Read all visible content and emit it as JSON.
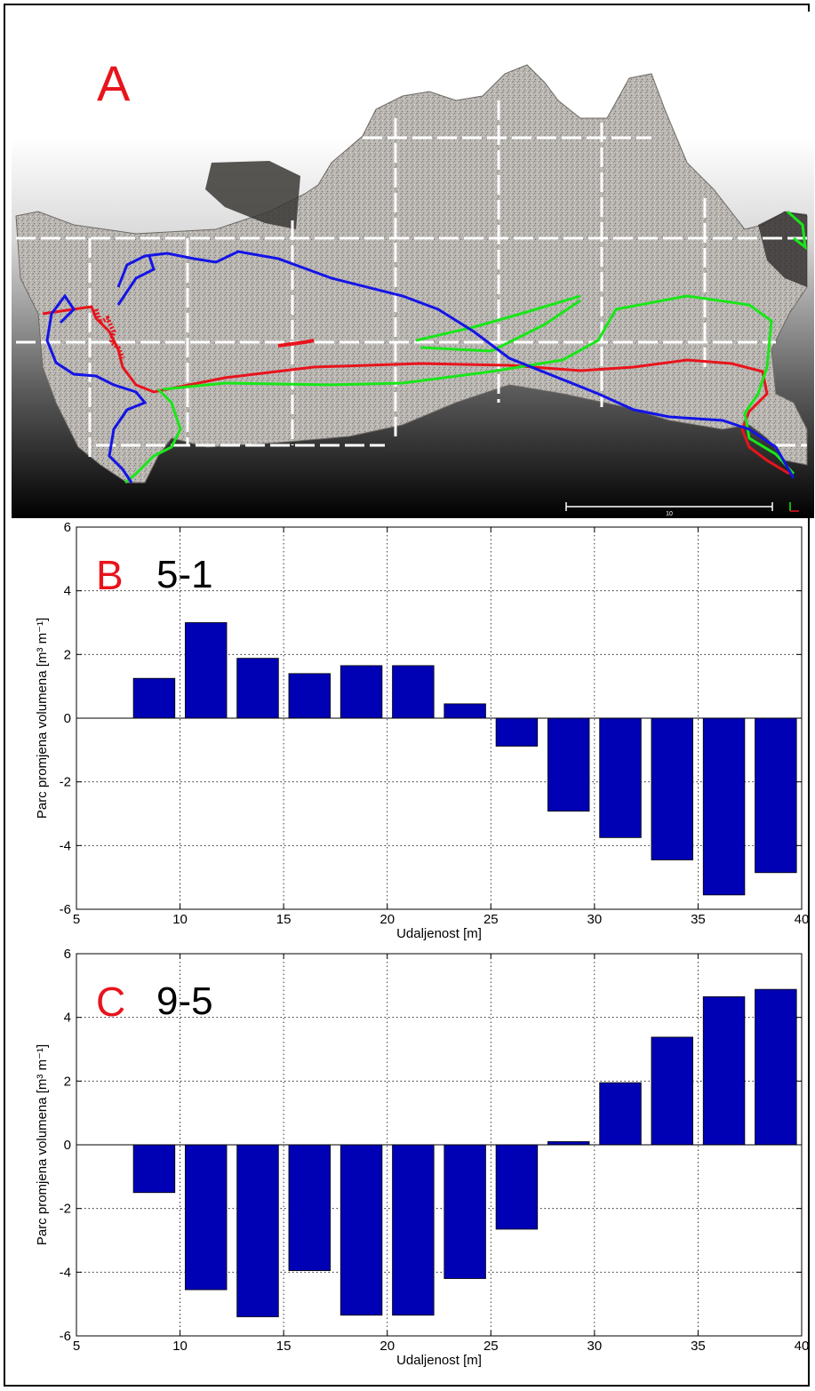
{
  "panel_a": {
    "letter": "A",
    "scale_label": "10",
    "colors": {
      "red": "#e8141c",
      "green": "#19e619",
      "blue": "#1414e6",
      "grid": "#ffffff"
    }
  },
  "chart_data": [
    {
      "type": "bar",
      "panel_letter": "B",
      "tag": "5-1",
      "x": [
        8.75,
        11.25,
        13.75,
        16.25,
        18.75,
        21.25,
        23.75,
        26.25,
        28.75,
        31.25,
        33.75,
        36.25,
        38.75
      ],
      "values": [
        1.25,
        3.0,
        1.88,
        1.4,
        1.65,
        1.65,
        0.45,
        -0.88,
        -2.92,
        -3.75,
        -4.45,
        -5.55,
        -4.85
      ],
      "xlabel": "Udaljenost [m]",
      "ylabel": "Parc promjena volumena [m³ m⁻¹]",
      "xlim": [
        5,
        40
      ],
      "ylim": [
        -6,
        6
      ],
      "xticks": [
        5,
        10,
        15,
        20,
        25,
        30,
        35,
        40
      ],
      "yticks": [
        -6,
        -4,
        -2,
        0,
        2,
        4,
        6
      ],
      "grid": true,
      "bar_color": "#0000b4"
    },
    {
      "type": "bar",
      "panel_letter": "C",
      "tag": "9-5",
      "x": [
        8.75,
        11.25,
        13.75,
        16.25,
        18.75,
        21.25,
        23.75,
        26.25,
        28.75,
        31.25,
        33.75,
        36.25,
        38.75
      ],
      "values": [
        -1.5,
        -4.55,
        -5.4,
        -3.95,
        -5.35,
        -5.35,
        -4.2,
        -2.65,
        0.1,
        1.95,
        3.38,
        4.65,
        4.88
      ],
      "xlabel": "Udaljenost [m]",
      "ylabel": "Parc promjena volumena [m³ m⁻¹]",
      "xlim": [
        5,
        40
      ],
      "ylim": [
        -6,
        6
      ],
      "xticks": [
        5,
        10,
        15,
        20,
        25,
        30,
        35,
        40
      ],
      "yticks": [
        -6,
        -4,
        -2,
        0,
        2,
        4,
        6
      ],
      "grid": true,
      "bar_color": "#0000b4"
    }
  ]
}
